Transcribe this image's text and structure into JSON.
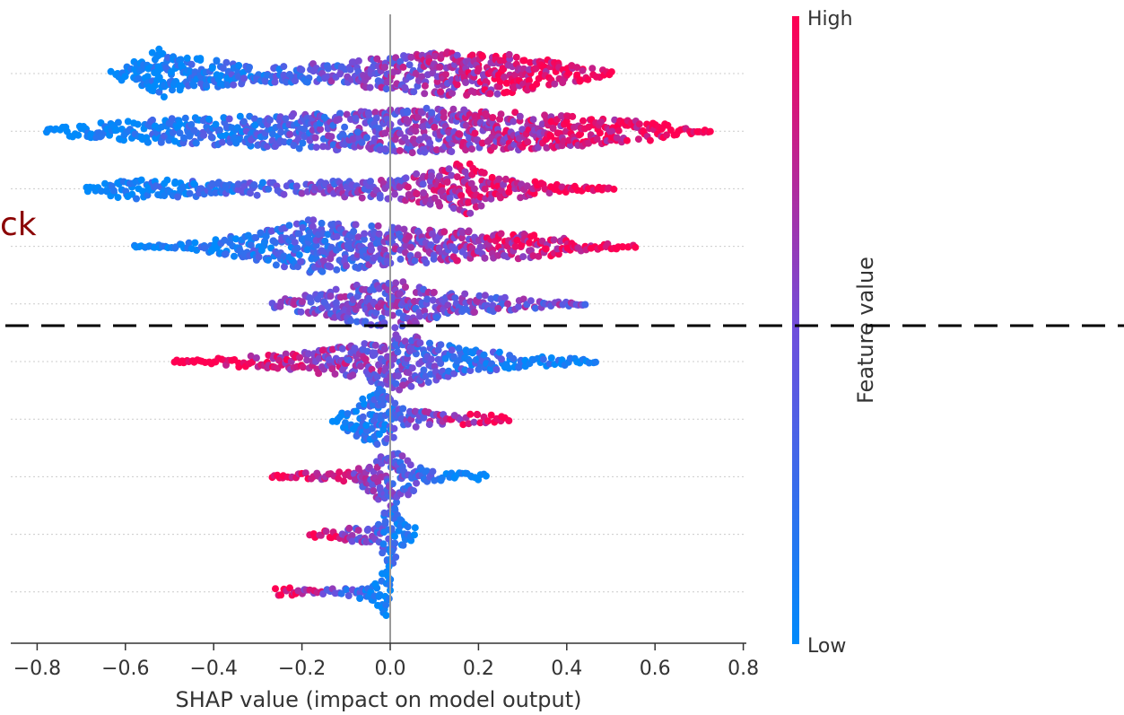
{
  "chart_data": {
    "type": "scatter",
    "subtype": "beeswarm",
    "title": "",
    "xlabel": "SHAP value (impact on model output)",
    "ylabel": "",
    "xlim": [
      -0.85,
      0.81
    ],
    "x_ticks": [
      "−0.8",
      "−0.6",
      "−0.4",
      "−0.2",
      "0.0",
      "0.2",
      "0.4",
      "0.6",
      "0.8"
    ],
    "x_tick_values": [
      -0.8,
      -0.6,
      -0.4,
      -0.2,
      0.0,
      0.2,
      0.4,
      0.6,
      0.8
    ],
    "zero_line": 0.0,
    "grid": "dotted row lines",
    "feature_names": [],
    "rows": [
      {
        "min": -0.63,
        "max": 0.51,
        "density": [
          [
            -0.52,
            28
          ],
          [
            -0.45,
            18
          ],
          [
            -0.3,
            10
          ],
          [
            -0.1,
            12
          ],
          [
            0.0,
            20
          ],
          [
            0.18,
            26
          ],
          [
            0.3,
            20
          ],
          [
            0.42,
            10
          ]
        ],
        "color_trend": 1
      },
      {
        "min": -0.78,
        "max": 0.73,
        "density": [
          [
            -0.7,
            8
          ],
          [
            -0.5,
            14
          ],
          [
            -0.3,
            18
          ],
          [
            -0.1,
            22
          ],
          [
            0.05,
            26
          ],
          [
            0.2,
            24
          ],
          [
            0.4,
            18
          ],
          [
            0.6,
            10
          ]
        ],
        "color_trend": 1
      },
      {
        "min": -0.69,
        "max": 0.51,
        "density": [
          [
            -0.6,
            12
          ],
          [
            -0.4,
            8
          ],
          [
            -0.2,
            7
          ],
          [
            0.0,
            12
          ],
          [
            0.12,
            22
          ],
          [
            0.17,
            32
          ],
          [
            0.22,
            14
          ],
          [
            0.4,
            4
          ]
        ],
        "color_trend": 1
      },
      {
        "min": -0.58,
        "max": 0.56,
        "density": [
          [
            -0.4,
            8
          ],
          [
            -0.3,
            16
          ],
          [
            -0.18,
            30
          ],
          [
            -0.05,
            24
          ],
          [
            0.1,
            20
          ],
          [
            0.3,
            14
          ],
          [
            0.45,
            6
          ]
        ],
        "color_trend": 1
      },
      {
        "min": -0.27,
        "max": 0.45,
        "density": [
          [
            -0.2,
            10
          ],
          [
            -0.1,
            20
          ],
          [
            0.02,
            28
          ],
          [
            0.1,
            16
          ],
          [
            0.25,
            8
          ],
          [
            0.35,
            4
          ]
        ],
        "color_trend": 0
      },
      {
        "min": -0.49,
        "max": 0.47,
        "density": [
          [
            -0.35,
            6
          ],
          [
            -0.2,
            10
          ],
          [
            -0.05,
            22
          ],
          [
            0.02,
            32
          ],
          [
            0.15,
            16
          ],
          [
            0.3,
            8
          ],
          [
            0.4,
            4
          ]
        ],
        "color_trend": -1
      },
      {
        "min": -0.13,
        "max": 0.27,
        "density": [
          [
            -0.02,
            36
          ],
          [
            0.03,
            10
          ],
          [
            0.1,
            8
          ],
          [
            0.2,
            6
          ]
        ],
        "color_trend": 1
      },
      {
        "min": -0.27,
        "max": 0.22,
        "density": [
          [
            -0.2,
            4
          ],
          [
            -0.08,
            8
          ],
          [
            0.0,
            34
          ],
          [
            0.08,
            8
          ],
          [
            0.18,
            4
          ]
        ],
        "color_trend": -1
      },
      {
        "min": -0.18,
        "max": 0.06,
        "density": [
          [
            -0.1,
            8
          ],
          [
            -0.03,
            10
          ],
          [
            0.0,
            38
          ],
          [
            0.04,
            10
          ]
        ],
        "color_trend": -1
      },
      {
        "min": -0.26,
        "max": 0.0,
        "density": [
          [
            -0.25,
            4
          ],
          [
            -0.15,
            6
          ],
          [
            -0.05,
            8
          ],
          [
            0.0,
            32
          ]
        ],
        "color_trend": -1
      }
    ],
    "colorbar": {
      "label": "Feature value",
      "high_label": "High",
      "low_label": "Low",
      "colors": [
        "#008afb",
        "#6f4fdc",
        "#ff0052"
      ]
    },
    "annotations": [
      {
        "text": "ck",
        "color": "#8b0000"
      }
    ],
    "reference_line": {
      "style": "dashed",
      "color": "#000000"
    }
  }
}
